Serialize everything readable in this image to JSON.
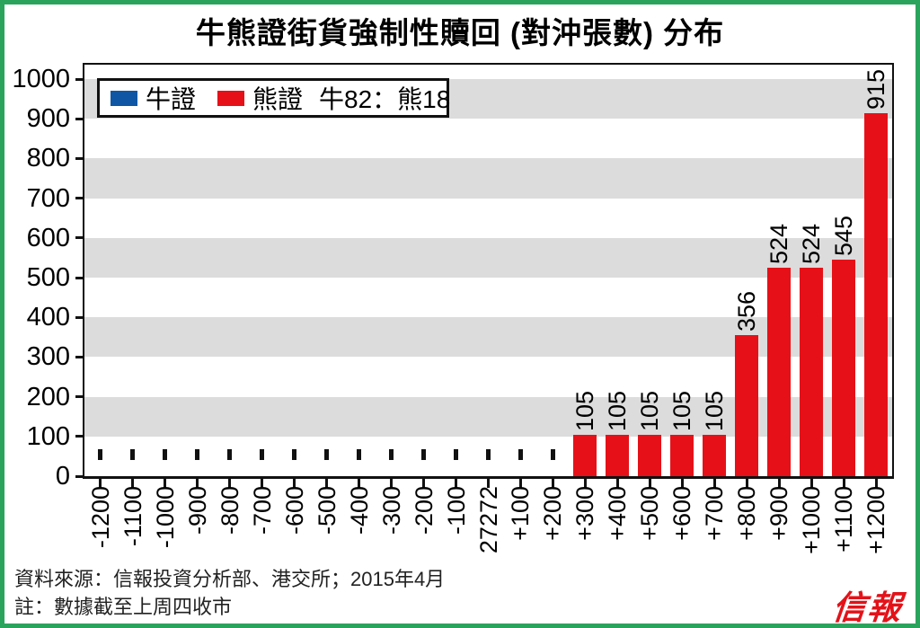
{
  "title": "牛熊證街貨強制性贖回 (對沖張數) 分布",
  "legend": {
    "bull_label": "牛證",
    "bear_label": "熊證",
    "ratio_label": "牛82：熊18"
  },
  "footer": {
    "source": "資料來源：信報投資分析部、港交所；2015年4月",
    "note": "註：數據截至上周四收市"
  },
  "logo_text": "信報",
  "colors": {
    "bull_blue": "#0f57a4",
    "bear_red": "#e61118",
    "band_gray": "#dcdcdc",
    "frame_green": "#2aa45d",
    "logo_red": "#e31219"
  },
  "chart_data": {
    "type": "bar",
    "title": "牛熊證街貨強制性贖回 (對沖張數) 分布",
    "categories": [
      "-1200",
      "-1100",
      "-1000",
      "-900",
      "-800",
      "-700",
      "-600",
      "-500",
      "-400",
      "-300",
      "-200",
      "-100",
      "27272",
      "+100",
      "+200",
      "+300",
      "+400",
      "+500",
      "+600",
      "+700",
      "+800",
      "+900",
      "+1000",
      "+1100",
      "+1200"
    ],
    "series": [
      {
        "name": "牛證",
        "color": "#0f57a4",
        "values": [
          null,
          null,
          null,
          null,
          null,
          null,
          null,
          null,
          null,
          null,
          null,
          null,
          null,
          null,
          null,
          null,
          null,
          null,
          null,
          null,
          null,
          null,
          null,
          null,
          null
        ]
      },
      {
        "name": "熊證",
        "color": "#e61118",
        "values": [
          null,
          null,
          null,
          null,
          null,
          null,
          null,
          null,
          null,
          null,
          null,
          null,
          null,
          null,
          null,
          105,
          105,
          105,
          105,
          105,
          356,
          524,
          524,
          545,
          915
        ]
      }
    ],
    "null_marker": "-",
    "xlabel": "",
    "ylabel": "",
    "ylim": [
      0,
      1000
    ],
    "ytick_step": 100,
    "gridbands": "alternating horizontal gray stripes every 100",
    "legend_position": "top-left inside plot",
    "legend_note": "牛82：熊18"
  }
}
